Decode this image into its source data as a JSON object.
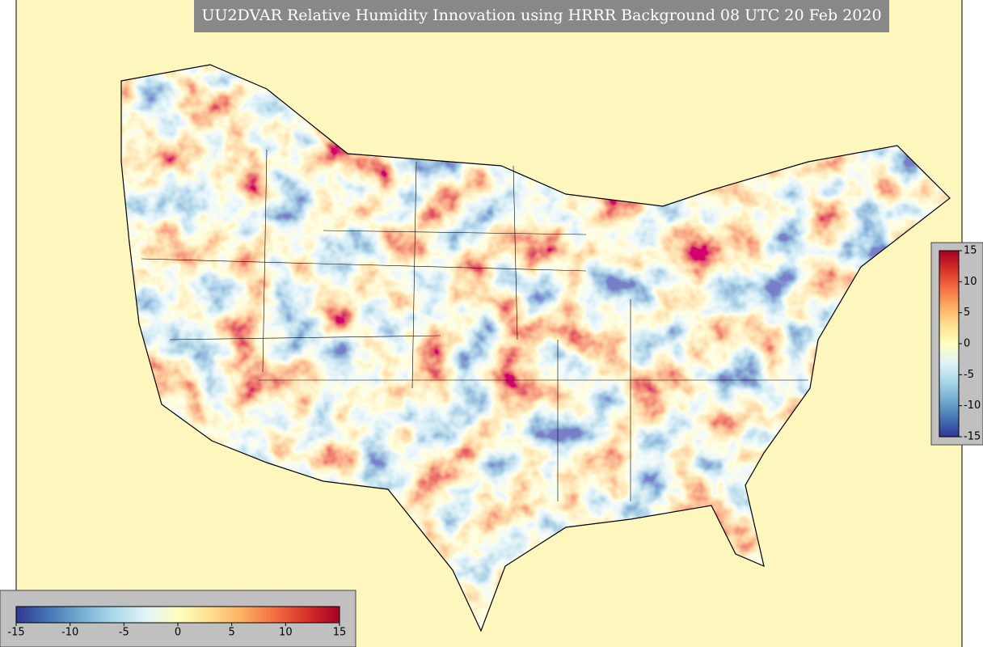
{
  "title": "UU2DVAR Relative Humidity Innovation using HRRR Background 08 UTC 20 Feb 2020",
  "colorbars": [
    {
      "orientation": "horizontal",
      "lim": [
        -15,
        15
      ],
      "ticks": [
        -15,
        -10,
        -5,
        0,
        5,
        10,
        15
      ]
    },
    {
      "orientation": "vertical",
      "lim": [
        -15,
        15
      ],
      "ticks": [
        15,
        10,
        5,
        0,
        -5,
        -10,
        -15
      ]
    }
  ],
  "colormap": [
    "#313695",
    "#4575b4",
    "#74add1",
    "#abd9e9",
    "#e0f3f8",
    "#ffffbf",
    "#fee090",
    "#fdae61",
    "#f46d43",
    "#d73027",
    "#a50026"
  ]
}
